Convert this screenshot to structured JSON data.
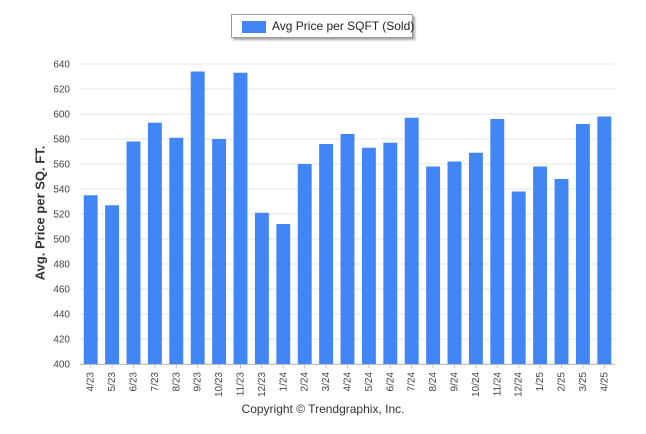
{
  "chart_data": {
    "type": "bar",
    "legend": "top-center",
    "grid": true,
    "ylabel": "Avg. Price per SQ. FT.",
    "xlabel": "",
    "ylim": [
      400,
      640
    ],
    "yticks": [
      400,
      420,
      440,
      460,
      480,
      500,
      520,
      540,
      560,
      580,
      600,
      620,
      640
    ],
    "categories": [
      "4/23",
      "5/23",
      "6/23",
      "7/23",
      "8/23",
      "9/23",
      "10/23",
      "11/23",
      "12/23",
      "1/24",
      "2/24",
      "3/24",
      "4/24",
      "5/24",
      "6/24",
      "7/24",
      "8/24",
      "9/24",
      "10/24",
      "11/24",
      "12/24",
      "1/25",
      "2/25",
      "3/25",
      "4/25"
    ],
    "series": [
      {
        "name": "Avg Price per SQFT (Sold)",
        "color": "#4285f4",
        "values": [
          535,
          527,
          578,
          593,
          581,
          634,
          580,
          633,
          521,
          512,
          560,
          576,
          584,
          573,
          577,
          597,
          558,
          562,
          569,
          596,
          538,
          558,
          548,
          592,
          598
        ]
      }
    ]
  },
  "footer": {
    "copyright": "Copyright © Trendgraphix, Inc."
  }
}
